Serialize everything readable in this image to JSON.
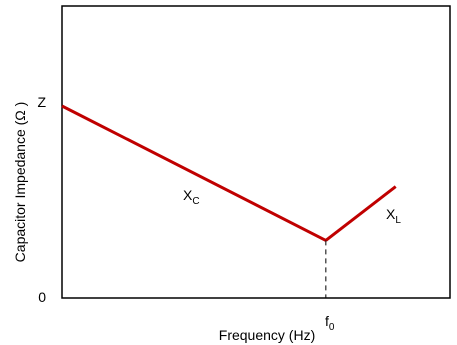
{
  "chart_data": {
    "type": "line",
    "xlabel": "Frequency (Hz)",
    "ylabel": "Capacitor Impedance (Ω )",
    "xlim": [
      0,
      100
    ],
    "ylim": [
      0,
      100
    ],
    "grid": false,
    "y_ticks": [
      {
        "value": 100,
        "label": "Z"
      },
      {
        "value": 0,
        "label": "0"
      }
    ],
    "x_markers": [
      {
        "value": 68,
        "label": "f",
        "subscript": "0"
      }
    ],
    "series": [
      {
        "name": "X",
        "subscript": "C",
        "x": [
          0,
          68
        ],
        "y": [
          100,
          30
        ]
      },
      {
        "name": "X",
        "subscript": "L",
        "x": [
          68,
          86
        ],
        "y": [
          30,
          58
        ]
      }
    ],
    "line_color": "#c00000"
  }
}
